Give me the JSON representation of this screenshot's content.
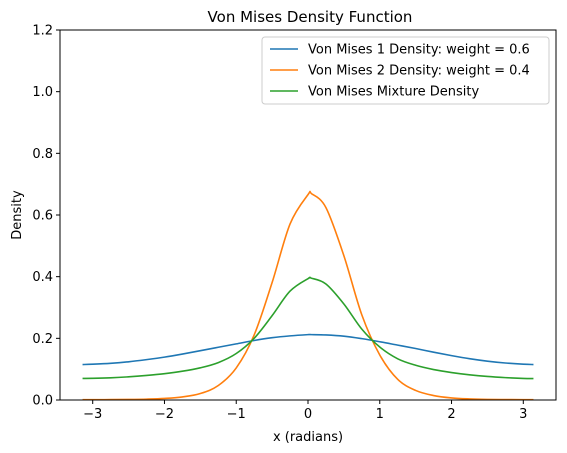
{
  "chart_data": {
    "type": "line",
    "title": "Von Mises Density Function",
    "xlabel": "x (radians)",
    "ylabel": "Density",
    "xlim": [
      -3.4558,
      3.4558
    ],
    "ylim": [
      0,
      1.2
    ],
    "xticks": [
      -3,
      -2,
      -1,
      0,
      1,
      2,
      3
    ],
    "xtick_labels": [
      "−3",
      "−2",
      "−1",
      "0",
      "1",
      "2",
      "3"
    ],
    "yticks": [
      0.0,
      0.2,
      0.4,
      0.6,
      0.8,
      1.0,
      1.2
    ],
    "ytick_labels": [
      "0.0",
      "0.2",
      "0.4",
      "0.6",
      "0.8",
      "1.0",
      "1.2"
    ],
    "grid": false,
    "legend_position": "top-right",
    "series": [
      {
        "name": "Von Mises 1 Density: weight = 0.6",
        "color": "#1f77b4",
        "x": [
          -3.14159,
          -3.0,
          -2.75,
          -2.5,
          -2.25,
          -2.0,
          -1.75,
          -1.5,
          -1.25,
          -1.0,
          -0.75,
          -0.5,
          -0.25,
          0.0,
          0.05,
          0.25,
          0.5,
          0.75,
          1.0,
          1.25,
          1.5,
          1.75,
          2.0,
          2.25,
          2.5,
          2.75,
          3.0,
          3.14159
        ],
        "y": [
          0.115,
          0.116,
          0.119,
          0.124,
          0.131,
          0.139,
          0.149,
          0.16,
          0.171,
          0.182,
          0.193,
          0.202,
          0.208,
          0.212,
          0.212,
          0.211,
          0.207,
          0.199,
          0.189,
          0.178,
          0.167,
          0.155,
          0.144,
          0.134,
          0.126,
          0.12,
          0.116,
          0.115
        ]
      },
      {
        "name": "Von Mises 2 Density: weight = 0.4",
        "color": "#ff7f0e",
        "x": [
          -3.14159,
          -3.0,
          -2.75,
          -2.5,
          -2.25,
          -2.0,
          -1.75,
          -1.5,
          -1.25,
          -1.0,
          -0.75,
          -0.5,
          -0.25,
          0.0,
          0.05,
          0.25,
          0.5,
          0.75,
          1.0,
          1.25,
          1.5,
          1.75,
          2.0,
          2.25,
          2.5,
          2.75,
          3.0,
          3.14159
        ],
        "y": [
          0.0011,
          0.0011,
          0.0013,
          0.0018,
          0.0028,
          0.005,
          0.0099,
          0.021,
          0.047,
          0.104,
          0.211,
          0.381,
          0.571,
          0.666,
          0.669,
          0.624,
          0.468,
          0.276,
          0.146,
          0.067,
          0.031,
          0.0145,
          0.0068,
          0.0035,
          0.002,
          0.0014,
          0.0011,
          0.0011
        ]
      },
      {
        "name": "Von Mises Mixture Density",
        "color": "#2ca02c",
        "x": [
          -3.14159,
          -3.0,
          -2.75,
          -2.5,
          -2.25,
          -2.0,
          -1.75,
          -1.5,
          -1.25,
          -1.0,
          -0.75,
          -0.5,
          -0.25,
          0.0,
          0.05,
          0.25,
          0.5,
          0.75,
          1.0,
          1.25,
          1.5,
          1.75,
          2.0,
          2.25,
          2.5,
          2.75,
          3.0,
          3.14159
        ],
        "y": [
          0.07,
          0.0702,
          0.0719,
          0.0751,
          0.0797,
          0.0854,
          0.0934,
          0.1044,
          0.1214,
          0.1508,
          0.2002,
          0.2736,
          0.3532,
          0.3936,
          0.3948,
          0.3762,
          0.3114,
          0.2298,
          0.1718,
          0.1336,
          0.1126,
          0.0988,
          0.0891,
          0.0818,
          0.0764,
          0.0726,
          0.07,
          0.0694
        ]
      }
    ]
  }
}
